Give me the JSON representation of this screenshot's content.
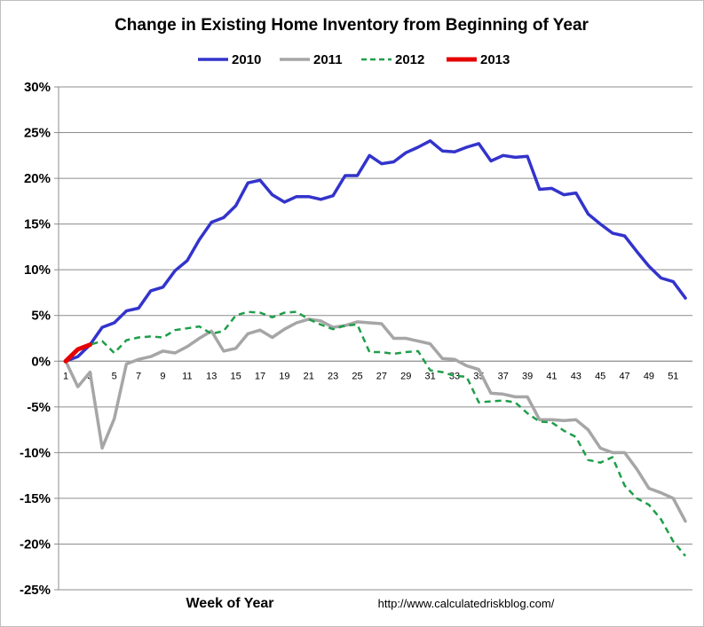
{
  "chart_data": {
    "type": "line",
    "title": "Change in Existing Home Inventory from Beginning of Year",
    "xlabel": "Week of Year",
    "ylabel": "",
    "source_note": "http://www.calculatedriskblog.com/",
    "xlim": [
      1,
      52
    ],
    "ylim": [
      -25,
      30
    ],
    "y_ticks": [
      30,
      25,
      20,
      15,
      10,
      5,
      0,
      -5,
      -10,
      -15,
      -20,
      -25
    ],
    "y_tick_labels": [
      "30%",
      "25%",
      "20%",
      "15%",
      "10%",
      "5%",
      "0%",
      "-5%",
      "-10%",
      "-15%",
      "-20%",
      "-25%"
    ],
    "x_ticks": [
      1,
      3,
      5,
      7,
      9,
      11,
      13,
      15,
      17,
      19,
      21,
      23,
      25,
      27,
      29,
      31,
      33,
      35,
      37,
      39,
      41,
      43,
      45,
      47,
      49,
      51
    ],
    "x_tick_labels": [
      "1",
      "3",
      "5",
      "7",
      "9",
      "11",
      "13",
      "15",
      "17",
      "19",
      "21",
      "23",
      "25",
      "27",
      "29",
      "31",
      "33",
      "35",
      "37",
      "39",
      "41",
      "43",
      "45",
      "47",
      "49",
      "51"
    ],
    "grid": "horizontal",
    "legend_position": "top-center",
    "series": [
      {
        "name": "2010",
        "color": "#3333cc",
        "dash": "solid",
        "x": [
          1,
          2,
          3,
          4,
          5,
          6,
          7,
          8,
          9,
          10,
          11,
          12,
          13,
          14,
          15,
          16,
          17,
          18,
          19,
          20,
          21,
          22,
          23,
          24,
          25,
          26,
          27,
          28,
          29,
          30,
          31,
          32,
          33,
          34,
          35,
          36,
          37,
          38,
          39,
          40,
          41,
          42,
          43,
          44,
          45,
          46,
          47,
          48,
          49,
          50,
          51,
          52
        ],
        "values": [
          0,
          0.5,
          1.8,
          3.7,
          4.2,
          5.5,
          5.8,
          7.7,
          8.1,
          9.9,
          11.0,
          13.3,
          15.2,
          15.7,
          17.0,
          19.5,
          19.8,
          18.2,
          17.4,
          18.0,
          18.0,
          17.7,
          18.1,
          20.3,
          20.3,
          22.5,
          21.6,
          21.8,
          22.8,
          23.4,
          24.1,
          23.0,
          22.9,
          23.4,
          23.8,
          21.9,
          22.5,
          22.3,
          22.4,
          18.8,
          18.9,
          18.2,
          18.4,
          16.1,
          15.0,
          14.0,
          13.7,
          12.0,
          10.4,
          9.1,
          8.7,
          6.9
        ]
      },
      {
        "name": "2011",
        "color": "#a6a6a6",
        "dash": "solid",
        "x": [
          1,
          2,
          3,
          4,
          5,
          6,
          7,
          8,
          9,
          10,
          11,
          12,
          13,
          14,
          15,
          16,
          17,
          18,
          19,
          20,
          21,
          22,
          23,
          24,
          25,
          26,
          27,
          28,
          29,
          30,
          31,
          32,
          33,
          34,
          35,
          36,
          37,
          38,
          39,
          40,
          41,
          42,
          43,
          44,
          45,
          46,
          47,
          48,
          49,
          50,
          51,
          52
        ],
        "values": [
          0,
          -2.8,
          -1.2,
          -9.5,
          -6.3,
          -0.3,
          0.2,
          0.5,
          1.1,
          0.9,
          1.6,
          2.5,
          3.3,
          1.1,
          1.4,
          3.0,
          3.4,
          2.6,
          3.5,
          4.2,
          4.6,
          4.4,
          3.7,
          3.9,
          4.3,
          4.2,
          4.1,
          2.5,
          2.5,
          2.2,
          1.9,
          0.3,
          0.2,
          -0.5,
          -0.9,
          -3.5,
          -3.6,
          -3.9,
          -3.9,
          -6.4,
          -6.4,
          -6.5,
          -6.4,
          -7.5,
          -9.5,
          -10.0,
          -10.0,
          -11.8,
          -13.9,
          -14.4,
          -15.0,
          -17.5
        ]
      },
      {
        "name": "2012",
        "color": "#1f9e4a",
        "dash": "dashed",
        "x": [
          1,
          2,
          3,
          4,
          5,
          6,
          7,
          8,
          9,
          10,
          11,
          12,
          13,
          14,
          15,
          16,
          17,
          18,
          19,
          20,
          21,
          22,
          23,
          24,
          25,
          26,
          27,
          28,
          29,
          30,
          31,
          32,
          33,
          34,
          35,
          36,
          37,
          38,
          39,
          40,
          41,
          42,
          43,
          44,
          45,
          46,
          47,
          48,
          49,
          50,
          51,
          52
        ],
        "values": [
          0,
          1.3,
          1.8,
          2.2,
          0.9,
          2.3,
          2.6,
          2.7,
          2.6,
          3.4,
          3.6,
          3.8,
          3.0,
          3.3,
          5.0,
          5.4,
          5.3,
          4.8,
          5.3,
          5.4,
          4.6,
          4.0,
          3.5,
          3.9,
          4.0,
          1.0,
          1.0,
          0.8,
          1.0,
          1.1,
          -1.0,
          -1.2,
          -1.6,
          -1.7,
          -4.5,
          -4.4,
          -4.3,
          -4.5,
          -5.7,
          -6.6,
          -6.7,
          -7.6,
          -8.3,
          -10.8,
          -11.1,
          -10.5,
          -13.6,
          -15.0,
          -15.7,
          -17.3,
          -19.7,
          -21.3
        ]
      },
      {
        "name": "2013",
        "color": "#e60000",
        "dash": "solid",
        "x": [
          1,
          2,
          3
        ],
        "values": [
          0,
          1.3,
          1.8
        ]
      }
    ]
  }
}
